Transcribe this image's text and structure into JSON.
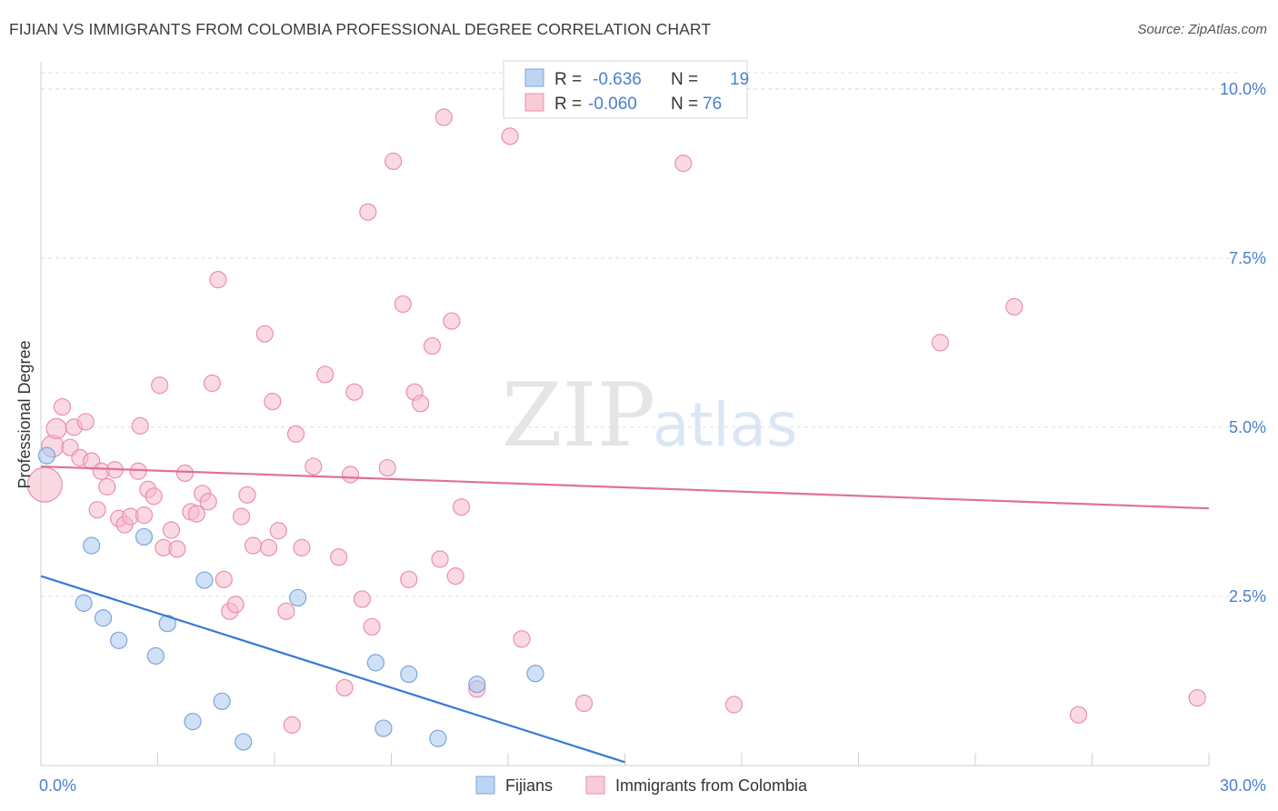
{
  "header": {
    "title": "FIJIAN VS IMMIGRANTS FROM COLOMBIA PROFESSIONAL DEGREE CORRELATION CHART",
    "source": "Source: ZipAtlas.com"
  },
  "watermark": {
    "zip": "ZIP",
    "atlas": "atlas"
  },
  "legend": {
    "rows": [
      {
        "r_label": "R =",
        "r_value": "-0.636",
        "n_label": "N =",
        "n_value": "19",
        "color": "#a9c8f0"
      },
      {
        "r_label": "R =",
        "r_value": "-0.060",
        "n_label": "N =",
        "n_value": "76",
        "color": "#f6b9cc"
      }
    ]
  },
  "bottom_legend": [
    "Fijians",
    "Immigrants from Colombia"
  ],
  "chart_data": {
    "type": "scatter",
    "title": "FIJIAN VS IMMIGRANTS FROM COLOMBIA PROFESSIONAL DEGREE CORRELATION CHART",
    "xlabel": "",
    "ylabel": "Professional Degree",
    "xlim": [
      0,
      30
    ],
    "ylim": [
      0,
      10.4
    ],
    "x_ticks": [
      "0.0%",
      "30.0%"
    ],
    "y_ticks": [
      {
        "value": 2.5,
        "label": "2.5%"
      },
      {
        "value": 5.0,
        "label": "5.0%"
      },
      {
        "value": 7.5,
        "label": "7.5%"
      },
      {
        "value": 10.0,
        "label": "10.0%"
      }
    ],
    "series": [
      {
        "name": "Fijians",
        "color": "#a9c8f0",
        "stroke": "#7aa5dd",
        "points": [
          [
            0.15,
            4.58
          ],
          [
            1.3,
            3.25
          ],
          [
            1.1,
            2.4
          ],
          [
            1.6,
            2.18
          ],
          [
            2.0,
            1.85
          ],
          [
            2.65,
            3.38
          ],
          [
            2.95,
            1.62
          ],
          [
            3.25,
            2.1
          ],
          [
            4.2,
            2.74
          ],
          [
            3.9,
            0.65
          ],
          [
            4.65,
            0.95
          ],
          [
            5.2,
            0.35
          ],
          [
            6.6,
            2.48
          ],
          [
            8.6,
            1.52
          ],
          [
            8.8,
            0.55
          ],
          [
            9.45,
            1.35
          ],
          [
            10.2,
            0.4
          ],
          [
            11.2,
            1.2
          ],
          [
            12.7,
            1.36
          ]
        ],
        "trend": {
          "x": [
            0,
            15.0
          ],
          "y": [
            2.8,
            0.05
          ]
        }
      },
      {
        "name": "Immigrants from Colombia",
        "color": "#f6b9cc",
        "stroke": "#ea8fab",
        "points": [
          [
            0.1,
            4.15
          ],
          [
            0.3,
            4.72
          ],
          [
            0.4,
            4.98
          ],
          [
            0.55,
            5.3
          ],
          [
            0.75,
            4.7
          ],
          [
            0.85,
            5.0
          ],
          [
            1.0,
            4.55
          ],
          [
            1.15,
            5.08
          ],
          [
            1.3,
            4.5
          ],
          [
            1.45,
            3.78
          ],
          [
            1.55,
            4.35
          ],
          [
            1.7,
            4.12
          ],
          [
            1.9,
            4.37
          ],
          [
            2.0,
            3.65
          ],
          [
            2.15,
            3.56
          ],
          [
            2.3,
            3.68
          ],
          [
            2.5,
            4.35
          ],
          [
            2.55,
            5.02
          ],
          [
            2.65,
            3.7
          ],
          [
            2.75,
            4.08
          ],
          [
            2.9,
            3.98
          ],
          [
            3.05,
            5.62
          ],
          [
            3.15,
            3.22
          ],
          [
            3.35,
            3.48
          ],
          [
            3.5,
            3.2
          ],
          [
            3.7,
            4.32
          ],
          [
            3.85,
            3.75
          ],
          [
            4.0,
            3.72
          ],
          [
            4.15,
            4.02
          ],
          [
            4.3,
            3.9
          ],
          [
            4.4,
            5.65
          ],
          [
            4.55,
            7.18
          ],
          [
            4.7,
            2.75
          ],
          [
            4.85,
            2.28
          ],
          [
            5.0,
            2.38
          ],
          [
            5.15,
            3.68
          ],
          [
            5.3,
            4.0
          ],
          [
            5.45,
            3.25
          ],
          [
            5.75,
            6.38
          ],
          [
            5.85,
            3.22
          ],
          [
            5.95,
            5.38
          ],
          [
            6.1,
            3.47
          ],
          [
            6.3,
            2.28
          ],
          [
            6.45,
            0.6
          ],
          [
            6.55,
            4.9
          ],
          [
            6.7,
            3.22
          ],
          [
            7.0,
            4.42
          ],
          [
            7.3,
            5.78
          ],
          [
            7.65,
            3.08
          ],
          [
            7.8,
            1.15
          ],
          [
            7.95,
            4.3
          ],
          [
            8.05,
            5.52
          ],
          [
            8.25,
            2.46
          ],
          [
            8.4,
            8.18
          ],
          [
            8.5,
            2.05
          ],
          [
            8.9,
            4.4
          ],
          [
            9.05,
            8.93
          ],
          [
            9.3,
            6.82
          ],
          [
            9.45,
            2.75
          ],
          [
            9.6,
            5.52
          ],
          [
            9.75,
            5.35
          ],
          [
            10.05,
            6.2
          ],
          [
            10.25,
            3.05
          ],
          [
            10.35,
            9.58
          ],
          [
            10.55,
            6.57
          ],
          [
            10.65,
            2.8
          ],
          [
            10.8,
            3.82
          ],
          [
            11.2,
            1.13
          ],
          [
            12.05,
            9.3
          ],
          [
            12.35,
            1.87
          ],
          [
            13.95,
            0.92
          ],
          [
            16.5,
            8.9
          ],
          [
            17.8,
            0.9
          ],
          [
            23.1,
            6.25
          ],
          [
            25.0,
            6.78
          ],
          [
            26.65,
            0.75
          ],
          [
            29.7,
            1.0
          ]
        ],
        "trend": {
          "x": [
            0,
            30.0
          ],
          "y": [
            4.42,
            3.8
          ]
        }
      }
    ]
  }
}
